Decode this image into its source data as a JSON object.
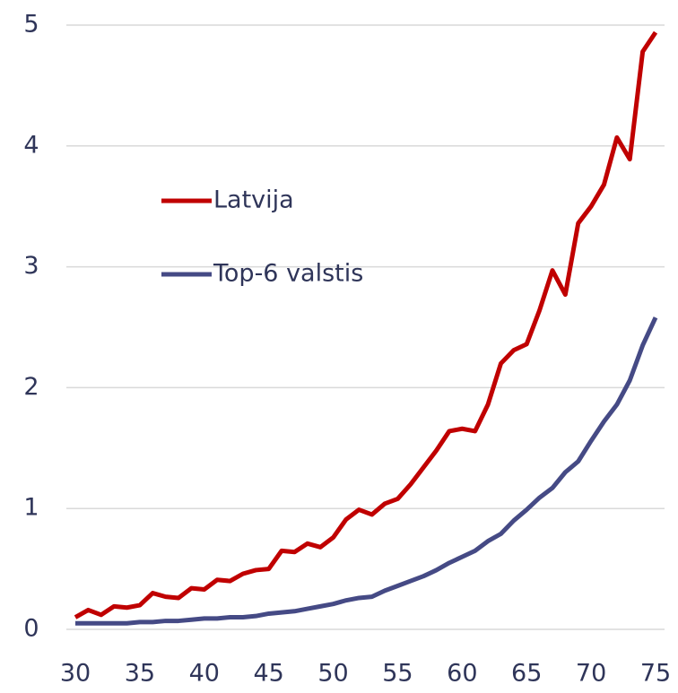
{
  "chart_data": {
    "type": "line",
    "x": [
      30,
      31,
      32,
      33,
      34,
      35,
      36,
      37,
      38,
      39,
      40,
      41,
      42,
      43,
      44,
      45,
      46,
      47,
      48,
      49,
      50,
      51,
      52,
      53,
      54,
      55,
      56,
      57,
      58,
      59,
      60,
      61,
      62,
      63,
      64,
      65,
      66,
      67,
      68,
      69,
      70,
      71,
      72,
      73,
      74,
      75
    ],
    "series": [
      {
        "name": "Latvija",
        "color": "#c00000",
        "values": [
          0.1,
          0.16,
          0.12,
          0.19,
          0.18,
          0.2,
          0.3,
          0.27,
          0.26,
          0.34,
          0.33,
          0.41,
          0.4,
          0.46,
          0.49,
          0.5,
          0.65,
          0.64,
          0.71,
          0.68,
          0.76,
          0.91,
          0.99,
          0.95,
          1.04,
          1.08,
          1.2,
          1.34,
          1.48,
          1.64,
          1.66,
          1.64,
          1.86,
          2.2,
          2.31,
          2.36,
          2.64,
          2.97,
          2.77,
          3.36,
          3.5,
          3.68,
          4.07,
          3.89,
          4.78,
          4.94
        ]
      },
      {
        "name": "Top-6 valstis",
        "color": "#454a85",
        "values": [
          0.05,
          0.05,
          0.05,
          0.05,
          0.05,
          0.06,
          0.06,
          0.07,
          0.07,
          0.08,
          0.09,
          0.09,
          0.1,
          0.1,
          0.11,
          0.13,
          0.14,
          0.15,
          0.17,
          0.19,
          0.21,
          0.24,
          0.26,
          0.27,
          0.32,
          0.36,
          0.4,
          0.44,
          0.49,
          0.55,
          0.6,
          0.65,
          0.73,
          0.79,
          0.9,
          0.99,
          1.09,
          1.17,
          1.3,
          1.39,
          1.56,
          1.72,
          1.86,
          2.06,
          2.35,
          2.58
        ]
      }
    ],
    "xlim": [
      30,
      75
    ],
    "xticks": [
      30,
      35,
      40,
      45,
      50,
      55,
      60,
      65,
      70,
      75
    ],
    "ylim": [
      0,
      5
    ],
    "yticks": [
      0,
      1,
      2,
      3,
      4,
      5
    ],
    "grid": true,
    "legend": "left"
  }
}
